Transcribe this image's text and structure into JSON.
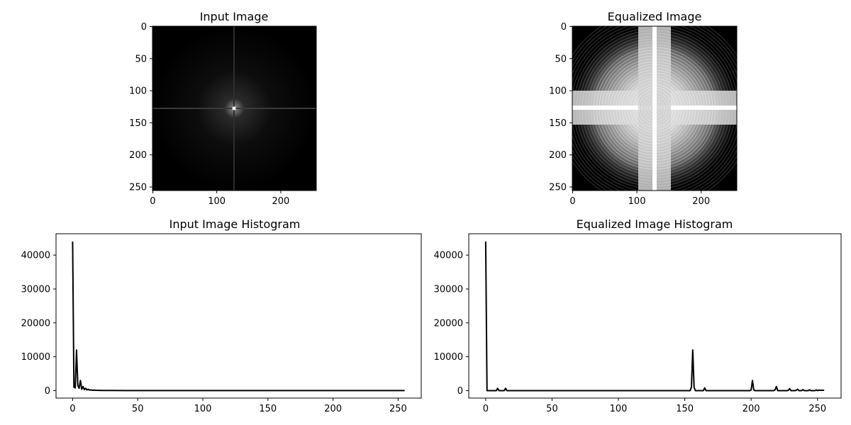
{
  "chart_data": [
    {
      "type": "heatmap",
      "title": "Input Image",
      "image_size": [
        256,
        256
      ],
      "x_ticks": [
        0,
        100,
        200
      ],
      "y_ticks": [
        0,
        50,
        100,
        150,
        200,
        250
      ],
      "xlim": [
        0,
        255
      ],
      "ylim": [
        255,
        0
      ],
      "colormap": "gray"
    },
    {
      "type": "heatmap",
      "title": "Equalized Image",
      "image_size": [
        256,
        256
      ],
      "x_ticks": [
        0,
        100,
        200
      ],
      "y_ticks": [
        0,
        50,
        100,
        150,
        200,
        250
      ],
      "xlim": [
        0,
        255
      ],
      "ylim": [
        255,
        0
      ],
      "colormap": "gray"
    },
    {
      "type": "line",
      "title": "Input Image Histogram",
      "xlim": [
        -12.75,
        267.75
      ],
      "ylim": [
        -2200,
        46300
      ],
      "x_ticks": [
        0,
        50,
        100,
        150,
        200,
        250
      ],
      "y_ticks": [
        0,
        10000,
        20000,
        30000,
        40000
      ],
      "line_color": "#000000",
      "series": [
        {
          "x": [
            0,
            1,
            2,
            3,
            4,
            5,
            6,
            7,
            8,
            9,
            10,
            11,
            12,
            13,
            14,
            15,
            16,
            18,
            20,
            25,
            30,
            40,
            60,
            100,
            150,
            200,
            255
          ],
          "values": [
            44000,
            1000,
            800,
            12000,
            1500,
            700,
            3000,
            400,
            1200,
            300,
            700,
            200,
            400,
            150,
            250,
            100,
            150,
            100,
            80,
            50,
            40,
            30,
            20,
            10,
            10,
            10,
            10
          ]
        }
      ]
    },
    {
      "type": "line",
      "title": "Equalized Image Histogram",
      "xlim": [
        -12.75,
        267.75
      ],
      "ylim": [
        -2200,
        46300
      ],
      "x_ticks": [
        0,
        50,
        100,
        150,
        200,
        250
      ],
      "y_ticks": [
        0,
        10000,
        20000,
        30000,
        40000
      ],
      "line_color": "#000000",
      "series": [
        {
          "x": [
            0,
            1,
            2,
            8,
            9,
            10,
            14,
            15,
            16,
            150,
            154,
            155,
            156,
            157,
            158,
            160,
            164,
            165,
            166,
            167,
            199,
            200,
            201,
            202,
            203,
            217,
            218,
            219,
            220,
            227,
            228,
            229,
            230,
            233,
            234,
            235,
            236,
            238,
            239,
            240,
            241,
            243,
            244,
            245,
            246,
            248,
            249,
            250,
            251,
            252,
            255
          ],
          "values": [
            44000,
            0,
            0,
            0,
            700,
            0,
            0,
            700,
            0,
            0,
            0,
            1000,
            12000,
            1000,
            0,
            0,
            0,
            800,
            0,
            0,
            0,
            200,
            3000,
            200,
            0,
            0,
            200,
            1200,
            0,
            0,
            100,
            600,
            0,
            0,
            100,
            400,
            0,
            0,
            300,
            0,
            0,
            0,
            250,
            0,
            0,
            0,
            200,
            0,
            150,
            100,
            100
          ]
        }
      ]
    }
  ]
}
